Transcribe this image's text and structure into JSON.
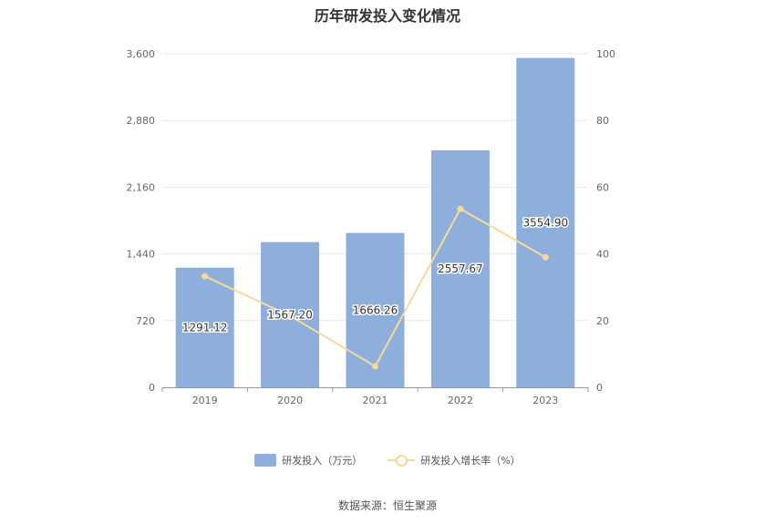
{
  "title": "历年研发投入变化情况",
  "source": "数据来源：恒生聚源",
  "colors": {
    "bar": "#8eaedb",
    "line": "#f7d99b",
    "grid": "#e8e8ee",
    "axis": "#999999"
  },
  "chart_data": {
    "type": "bar",
    "categories": [
      "2019",
      "2020",
      "2021",
      "2022",
      "2023"
    ],
    "series": [
      {
        "name": "研发投入（万元）",
        "type": "bar",
        "axis": "left",
        "values": [
          1291.12,
          1567.2,
          1666.26,
          2557.67,
          3554.9
        ],
        "labels": [
          "1291.12",
          "1567.20",
          "1666.26",
          "2557.67",
          "3554.90"
        ]
      },
      {
        "name": "研发投入增长率（%）",
        "type": "line",
        "axis": "right",
        "values": [
          33.3,
          21.4,
          6.3,
          53.5,
          39.0
        ]
      }
    ],
    "y_left": {
      "min": 0,
      "max": 3600,
      "ticks": [
        "0",
        "720",
        "1,440",
        "2,160",
        "2,880",
        "3,600"
      ]
    },
    "y_right": {
      "min": 0,
      "max": 100,
      "ticks": [
        "0",
        "20",
        "40",
        "60",
        "80",
        "100"
      ]
    },
    "grid": true,
    "legend_position": "bottom"
  }
}
